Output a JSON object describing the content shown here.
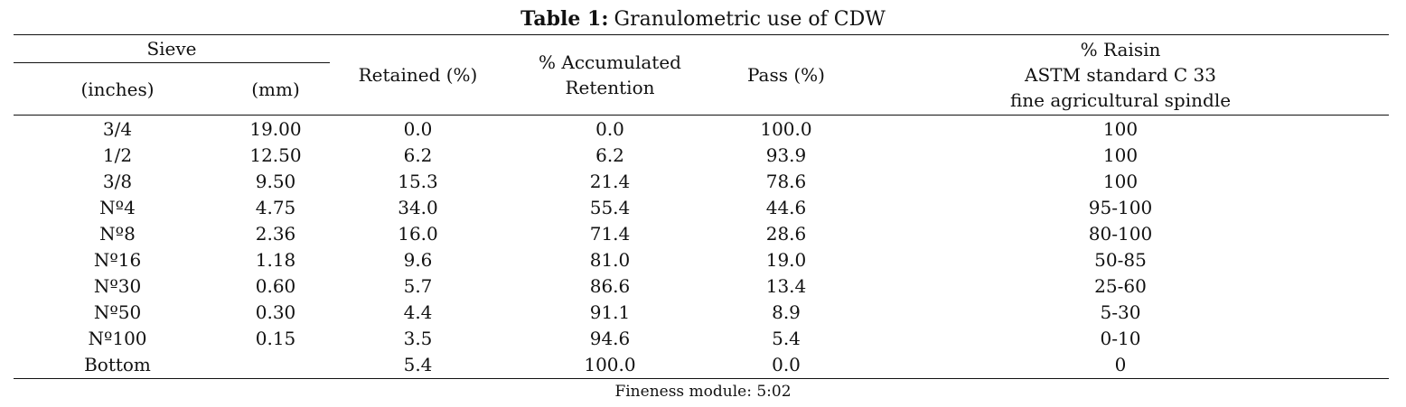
{
  "caption": {
    "label": "Table 1:",
    "title": "Granulometric use of CDW"
  },
  "header": {
    "sieve": "Sieve",
    "inches": "(inches)",
    "mm": "(mm)",
    "retained": "Retained (%)",
    "accumulated": [
      "% Accumulated",
      "Retention"
    ],
    "pass": "Pass (%)",
    "raisin": [
      "% Raisin",
      "ASTM standard C 33",
      "fine agricultural spindle"
    ]
  },
  "rows": [
    [
      "3/4",
      "19.00",
      "0.0",
      "0.0",
      "100.0",
      "100"
    ],
    [
      "1/2",
      "12.50",
      "6.2",
      "6.2",
      "93.9",
      "100"
    ],
    [
      "3/8",
      "9.50",
      "15.3",
      "21.4",
      "78.6",
      "100"
    ],
    [
      "Nº4",
      "4.75",
      "34.0",
      "55.4",
      "44.6",
      "95-100"
    ],
    [
      "Nº8",
      "2.36",
      "16.0",
      "71.4",
      "28.6",
      "80-100"
    ],
    [
      "Nº16",
      "1.18",
      "9.6",
      "81.0",
      "19.0",
      "50-85"
    ],
    [
      "Nº30",
      "0.60",
      "5.7",
      "86.6",
      "13.4",
      "25-60"
    ],
    [
      "Nº50",
      "0.30",
      "4.4",
      "91.1",
      "8.9",
      "5-30"
    ],
    [
      "Nº100",
      "0.15",
      "3.5",
      "94.6",
      "5.4",
      "0-10"
    ],
    [
      "Bottom",
      "",
      "5.4",
      "100.0",
      "0.0",
      "0"
    ]
  ],
  "footer": "Fineness module: 5:02"
}
